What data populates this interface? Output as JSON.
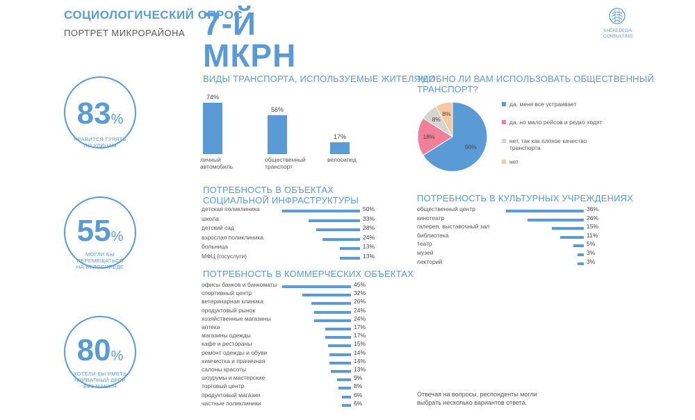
{
  "header": {
    "title": "СОЦИОЛОГИЧЕСКИЙ ОПРОС",
    "subtitle": "ПОРТРЕТ МИКРОРАЙОНА",
    "district_line1": "7-Й",
    "district_line2": "МКРН"
  },
  "logo": {
    "line1": "SHEREDEGA",
    "line2": "CONSULTING"
  },
  "stats": [
    {
      "value": "83",
      "unit": "%",
      "caption": [
        "НРАВИТСЯ ГУЛЯТЬ",
        "ПО УЛИЦАМ"
      ]
    },
    {
      "value": "55",
      "unit": "%",
      "caption": [
        "МОГЛИ БЫ",
        "ПЕРЕМЕЩАТЬСЯ",
        "НА ВЕЛОСИПЕДЕ"
      ]
    },
    {
      "value": "80",
      "unit": "%",
      "caption": [
        "ХОТЕЛИ БЫ ИМЕТЬ",
        "ПРИВАТНЫЙ ДВОР",
        "БЕЗ МАШИН"
      ]
    }
  ],
  "footnote": [
    "Отвечая на вопросы, респонденты могли",
    "выбрать несколько вариантов ответа."
  ],
  "colors": {
    "accent": "#5b9bd5",
    "pie_pink": "#f07f9a",
    "pie_gray": "#d9d3cf",
    "pie_peach": "#f7c9a0"
  },
  "chart_data": [
    {
      "id": "transport",
      "type": "bar",
      "title": "ВИДЫ ТРАНСПОРТА, ИСПОЛЬЗУЕМЫЕ ЖИТЕЛЯМИ",
      "categories": [
        [
          "личный",
          "автомобиль"
        ],
        [
          "общественный",
          "транспорт"
        ],
        [
          "велосипед"
        ]
      ],
      "values": [
        74,
        56,
        17
      ],
      "labels": [
        "74%",
        "56%",
        "17%"
      ],
      "ylim": [
        0,
        100
      ]
    },
    {
      "id": "public_transport",
      "type": "pie",
      "title": [
        "УДОБНО ЛИ ВАМ ИСПОЛЬЗОВАТЬ ОБЩЕСТВЕННЫЙ",
        "ТРАНСПОРТ?"
      ],
      "slices": [
        {
          "legend": [
            "да, меня все устраивает"
          ],
          "value": 66,
          "label": "66%",
          "color": "#5b9bd5"
        },
        {
          "legend": [
            "да, но мало рейсов и редко ходят"
          ],
          "value": 18,
          "label": "18%",
          "color": "#f07f9a"
        },
        {
          "legend": [
            "нет, так как плохое качество",
            "транспорта"
          ],
          "value": 8,
          "label": "8%",
          "color": "#d9d3cf"
        },
        {
          "legend": [
            "нет"
          ],
          "value": 8,
          "label": "8%",
          "color": "#f7c9a0"
        }
      ]
    },
    {
      "id": "social",
      "type": "bar",
      "orientation": "horizontal",
      "title": [
        "ПОТРЕБНОСТЬ В ОБЪЕКТАХ",
        "СОЦИАЛЬНОЙ ИНФРАСТРУКТУРЫ"
      ],
      "categories": [
        "детская поликлиника",
        "школа",
        "детский сад",
        "взрослая поликлиника",
        "больница",
        "МФЦ (госуслуги)"
      ],
      "values": [
        50,
        33,
        28,
        24,
        13,
        13
      ],
      "labels": [
        "50%",
        "33%",
        "28%",
        "24%",
        "13%",
        "13%"
      ]
    },
    {
      "id": "culture",
      "type": "bar",
      "orientation": "horizontal",
      "title": [
        "ПОТРЕБНОСТЬ В КУЛЬТУРНЫХ УЧРЕЖДЕНИЯХ"
      ],
      "categories": [
        "общественный центр",
        "кинотеатр",
        "галерея, выставочный зал",
        "библиотека",
        "театр",
        "музей",
        "лекторий"
      ],
      "values": [
        36,
        26,
        15,
        11,
        5,
        3,
        3
      ],
      "labels": [
        "36%",
        "26%",
        "15%",
        "11%",
        "5%",
        "3%",
        "3%"
      ]
    },
    {
      "id": "commerce",
      "type": "bar",
      "orientation": "horizontal",
      "title": [
        "ПОТРЕБНОСТЬ В КОММЕРЧЕСКИХ ОБЪЕКТАХ"
      ],
      "categories": [
        "офисы банков и банкоматы",
        "спортивный центр",
        "ветеринарная клиника",
        "продуктовый рынок",
        "хозяйственные магазины",
        "аптека",
        "магазины одежды",
        "кафе и рестораны",
        "ремонт одежды и обуви",
        "химчистка и прачечная",
        "салоны красоты",
        "шоурумы и мастерские",
        "торговый центр",
        "продуктовый магазин",
        "частные поликлиники"
      ],
      "values": [
        45,
        32,
        26,
        24,
        24,
        17,
        17,
        15,
        14,
        14,
        13,
        9,
        8,
        6,
        6
      ],
      "labels": [
        "45%",
        "32%",
        "26%",
        "24%",
        "24%",
        "17%",
        "17%",
        "15%",
        "14%",
        "14%",
        "13%",
        "9%",
        "8%",
        "6%",
        "6%"
      ]
    }
  ]
}
